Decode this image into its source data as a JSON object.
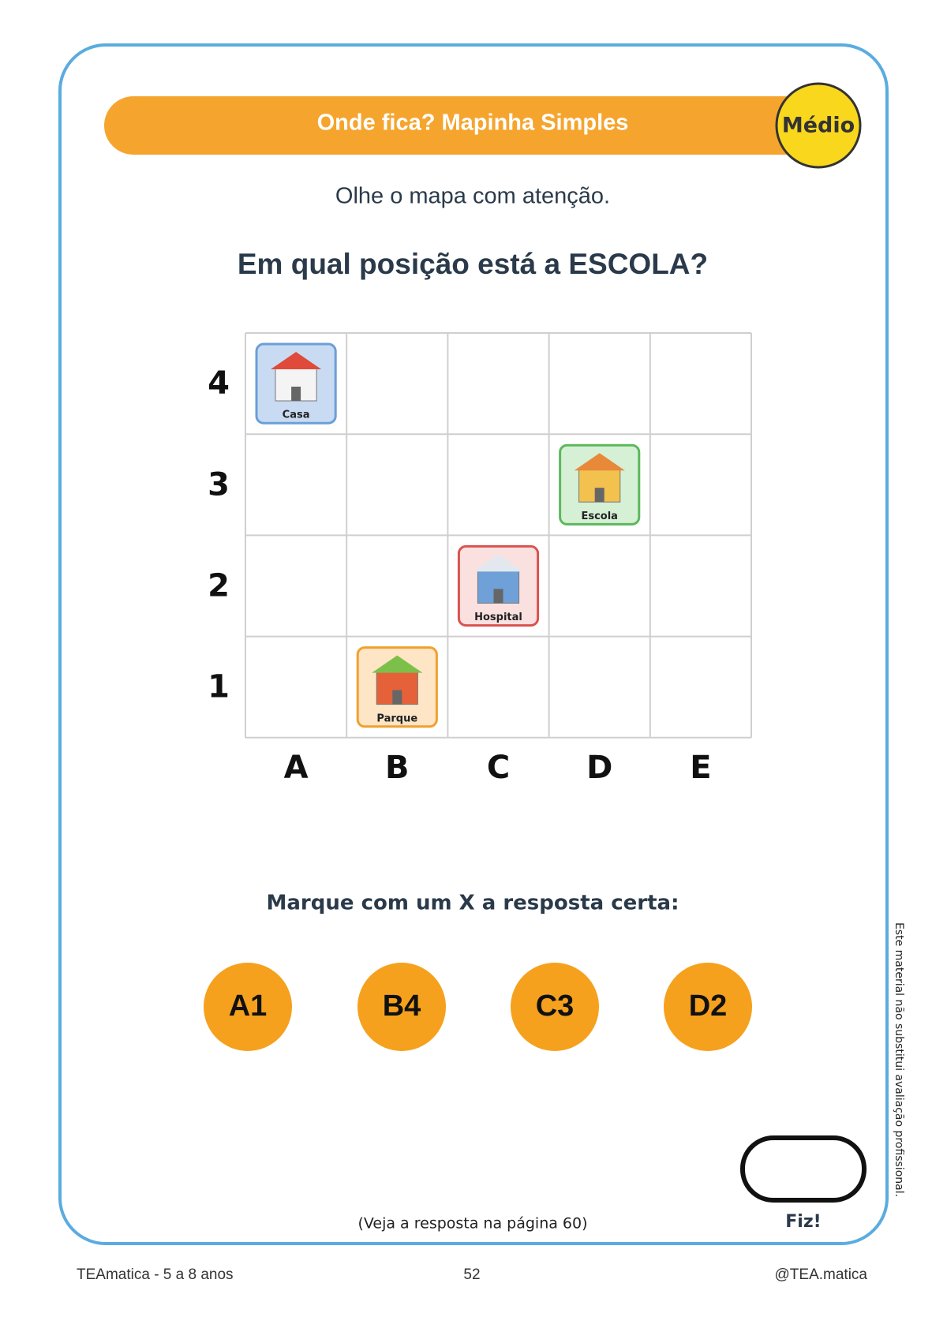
{
  "header": {
    "title": "Onde fica? Mapinha Simples",
    "badge": "Médio"
  },
  "instruction": "Olhe o mapa com atenção.",
  "question": "Em qual posição está a ESCOLA?",
  "grid": {
    "row_labels": [
      "4",
      "3",
      "2",
      "1"
    ],
    "column_labels": [
      "A",
      "B",
      "C",
      "D",
      "E"
    ],
    "rows": [
      [
        {
          "label": "Casa"
        },
        null,
        null,
        null,
        null
      ],
      [
        null,
        null,
        null,
        {
          "label": "Escola"
        },
        null
      ],
      [
        null,
        null,
        {
          "label": "Hospital"
        },
        null,
        null
      ],
      [
        null,
        {
          "label": "Parque"
        },
        null,
        null,
        null
      ]
    ]
  },
  "prompt": "Marque com um X a resposta certa:",
  "options": [
    "A1",
    "B4",
    "C3",
    "D2"
  ],
  "answer_note": "(Veja a resposta na página 60)",
  "done_label": "Fiz!",
  "disclaimer": "Este material não substitui avaliação profissional.",
  "footer": {
    "left": "TEAmatica - 5 a 8 anos",
    "center": "52",
    "right": "@TEA.matica"
  }
}
